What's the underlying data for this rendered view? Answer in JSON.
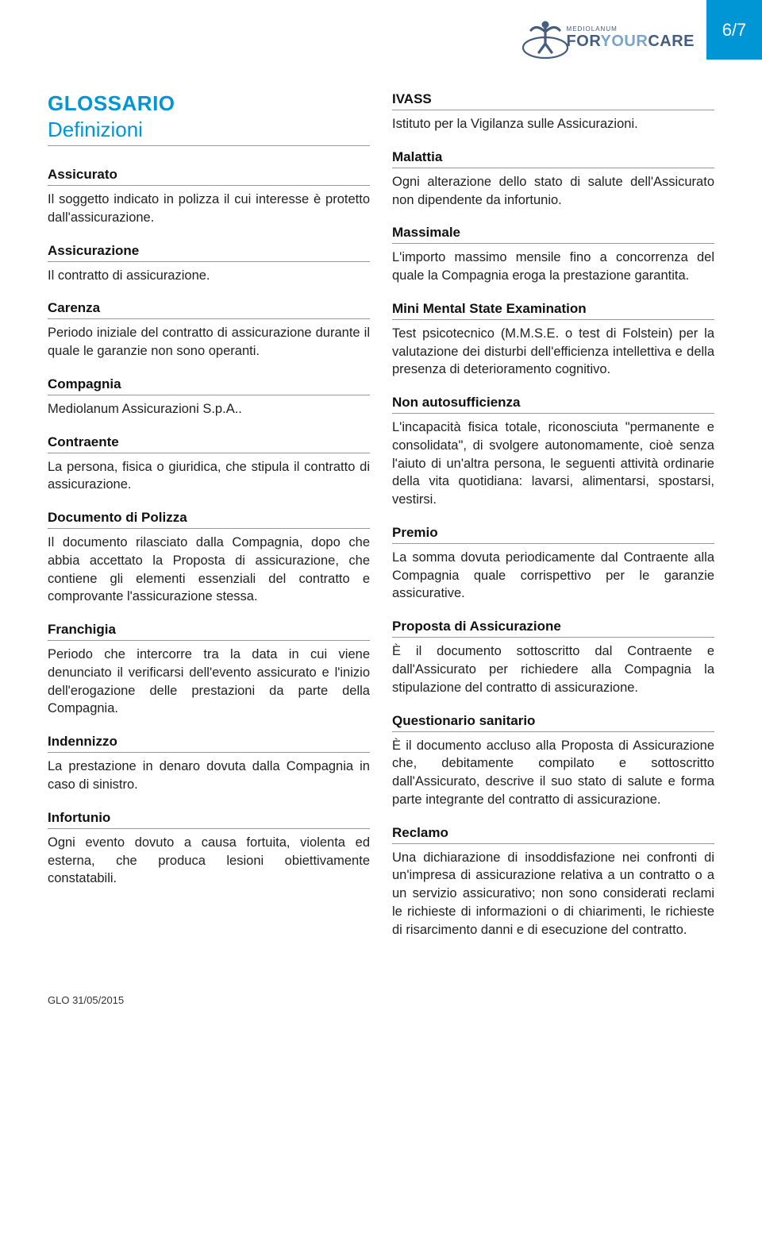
{
  "header": {
    "page_number": "6/7",
    "logo_mediolanum": "MEDIOLANUM",
    "logo_for": "FOR",
    "logo_your": "YOUR",
    "logo_care": "CARE",
    "colors": {
      "brand_blue": "#0096d6",
      "brand_dark": "#455d7e",
      "brand_light": "#7aa4c9"
    }
  },
  "title": "GLOSSARIO",
  "subtitle": "Definizioni",
  "left_column": [
    {
      "term": "Assicurato",
      "def": "Il soggetto indicato in polizza il cui interesse è protetto dall'assicurazione."
    },
    {
      "term": "Assicurazione",
      "def": "Il contratto di assicurazione."
    },
    {
      "term": "Carenza",
      "def": "Periodo iniziale del contratto di assicurazione durante il quale le garanzie non sono operanti."
    },
    {
      "term": "Compagnia",
      "def": "Mediolanum Assicurazioni S.p.A.."
    },
    {
      "term": "Contraente",
      "def": "La persona, fisica o giuridica, che stipula il contratto di assicurazione."
    },
    {
      "term": "Documento di Polizza",
      "def": "Il documento rilasciato dalla Compagnia, dopo che abbia accettato la Proposta di assicurazione, che contiene gli elementi essenziali del contratto e comprovante l'assicurazione stessa."
    },
    {
      "term": "Franchigia",
      "def": "Periodo che intercorre tra la data in cui viene denunciato il verificarsi dell'evento assicurato e l'inizio dell'erogazione delle prestazioni da parte della Compagnia."
    },
    {
      "term": "Indennizzo",
      "def": "La prestazione in denaro dovuta dalla Compagnia in caso di sinistro."
    },
    {
      "term": "Infortunio",
      "def": "Ogni evento dovuto a causa fortuita, violenta ed esterna, che produca lesioni obiettivamente constatabili."
    }
  ],
  "right_column": [
    {
      "term": "IVASS",
      "def": "Istituto per la Vigilanza sulle Assicurazioni."
    },
    {
      "term": "Malattia",
      "def": "Ogni alterazione dello stato di salute dell'Assicurato non dipendente da infortunio."
    },
    {
      "term": "Massimale",
      "def": "L'importo massimo mensile fino a concorrenza del quale la Compagnia eroga la prestazione garantita."
    },
    {
      "term": "Mini Mental State Examination",
      "def": "Test psicotecnico (M.M.S.E. o test di Folstein) per la valutazione dei disturbi dell'efficienza intellettiva e della presenza di deterioramento cognitivo."
    },
    {
      "term": "Non autosufficienza",
      "def": "L'incapacità fisica totale, riconosciuta \"permanente e consolidata\", di svolgere autonomamente, cioè senza l'aiuto di un'altra persona, le seguenti attività ordinarie della vita quotidiana: lavarsi, alimentarsi, spostarsi, vestirsi."
    },
    {
      "term": "Premio",
      "def": "La somma dovuta periodicamente dal Contraente alla Compagnia quale corrispettivo per le garanzie assicurative."
    },
    {
      "term": "Proposta di Assicurazione",
      "def": "È il documento sottoscritto dal Contraente e dall'Assicurato per richiedere alla Compagnia la stipulazione del contratto di assicurazione."
    },
    {
      "term": "Questionario sanitario",
      "def": "È il documento accluso alla Proposta di Assicurazione che, debitamente compilato e sottoscritto dall'Assicurato, descrive il suo stato di salute e forma parte integrante del contratto di assicurazione."
    },
    {
      "term": "Reclamo",
      "def": "Una dichiarazione di insoddisfazione nei confronti di un'impresa di assicurazione relativa a un contratto o a un servizio assicurativo; non sono considerati reclami le richieste di informazioni o di chiarimenti, le richieste di risarcimento danni e di esecuzione del contratto."
    }
  ],
  "footer": "GLO 31/05/2015"
}
